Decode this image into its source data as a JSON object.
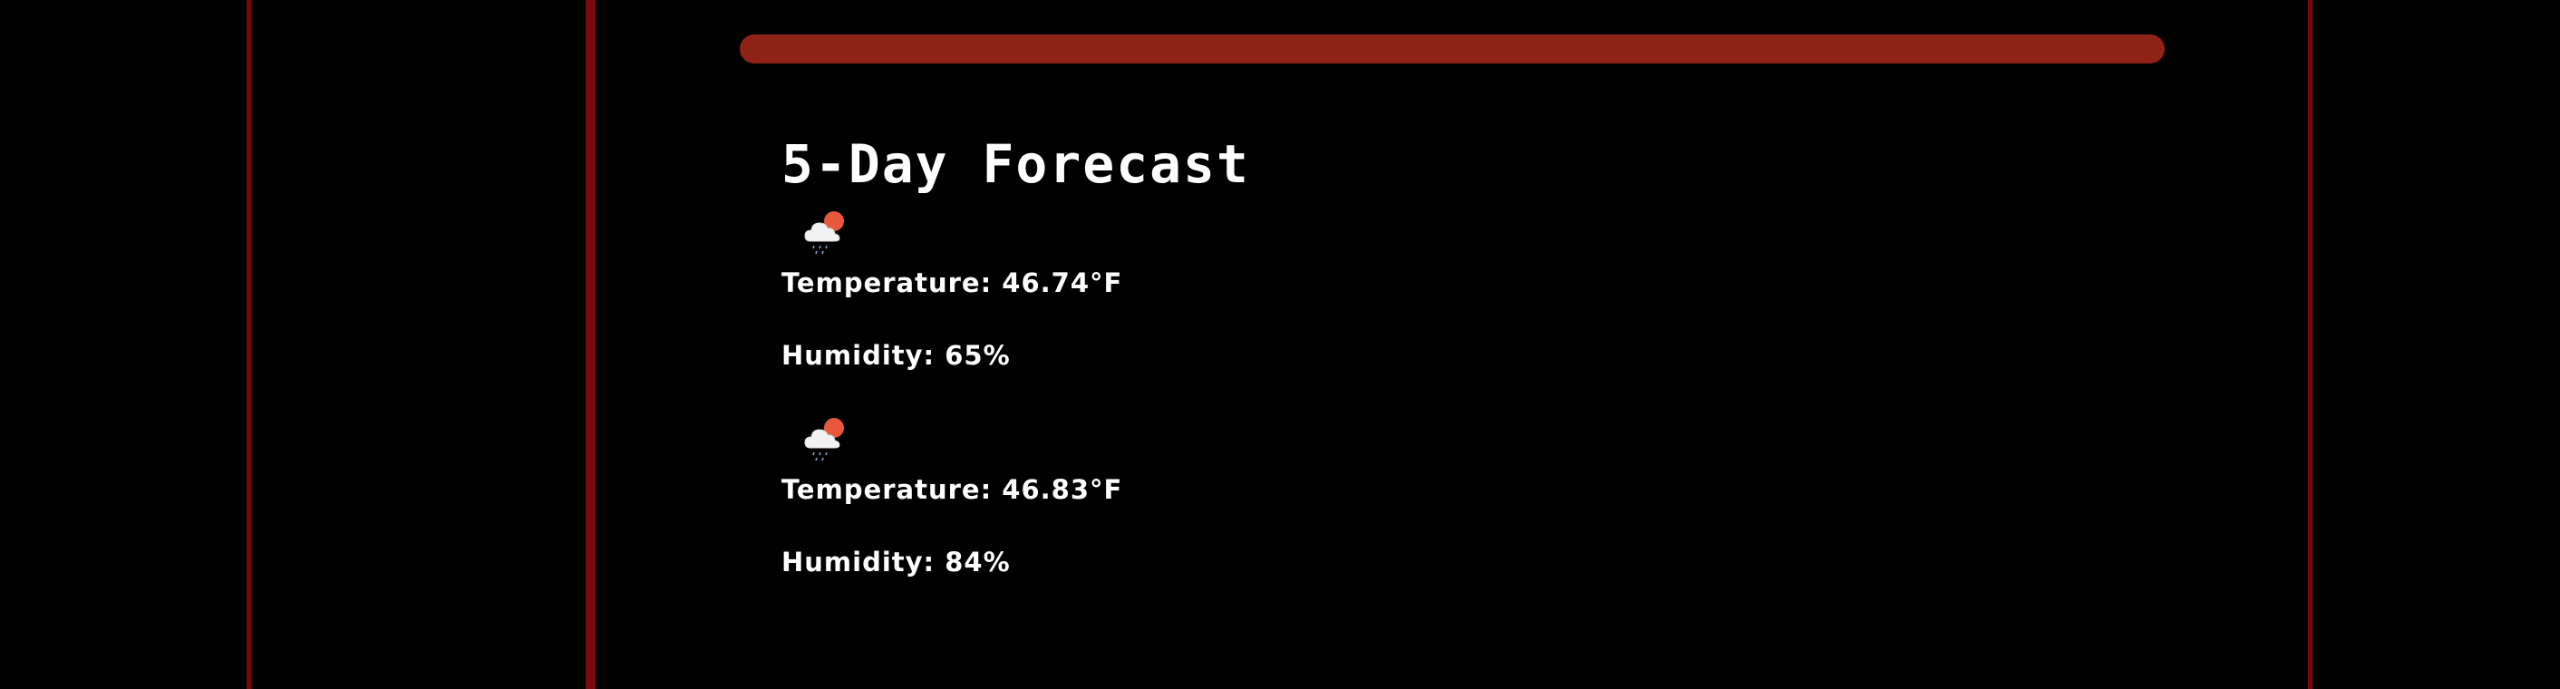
{
  "forecast": {
    "title": "5-Day Forecast",
    "days": [
      {
        "icon": "cloud-sun-rain-icon",
        "temperature": "Temperature: 46.74°F",
        "humidity": "Humidity: 65%"
      },
      {
        "icon": "cloud-sun-rain-icon",
        "temperature": "Temperature: 46.83°F",
        "humidity": "Humidity: 84%"
      }
    ]
  },
  "colors": {
    "background": "#000000",
    "accent_bar": "#8f2217",
    "border_lines": "#7a0a0a",
    "text": "#ffffff",
    "sun": "#e8583c"
  }
}
